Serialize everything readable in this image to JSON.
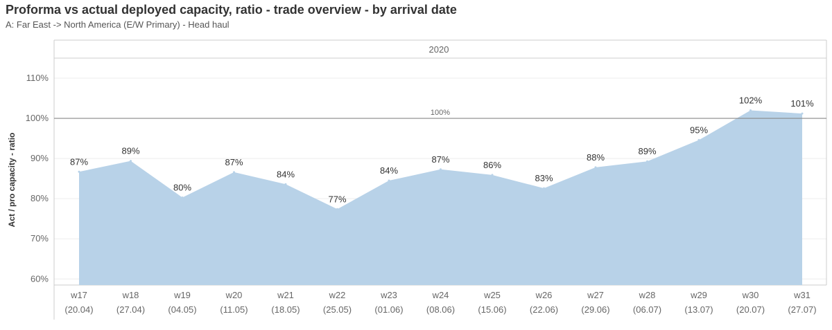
{
  "title": "Proforma vs actual deployed capacity, ratio - trade overview - by arrival date",
  "subtitle": "A: Far East -> North America (E/W Primary) - Head haul",
  "chart_data": {
    "type": "area",
    "panel_header": "2020",
    "ylabel": "Act / pro capacity - ratio",
    "ylim": [
      58.5,
      115
    ],
    "yticks": [
      60,
      70,
      80,
      90,
      100,
      110
    ],
    "ytick_labels": [
      "60%",
      "70%",
      "80%",
      "90%",
      "100%",
      "110%"
    ],
    "reference_line": {
      "value": 100,
      "label": "100%"
    },
    "categories": [
      {
        "week": "w17",
        "date": "(20.04)"
      },
      {
        "week": "w18",
        "date": "(27.04)"
      },
      {
        "week": "w19",
        "date": "(04.05)"
      },
      {
        "week": "w20",
        "date": "(11.05)"
      },
      {
        "week": "w21",
        "date": "(18.05)"
      },
      {
        "week": "w22",
        "date": "(25.05)"
      },
      {
        "week": "w23",
        "date": "(01.06)"
      },
      {
        "week": "w24",
        "date": "(08.06)"
      },
      {
        "week": "w25",
        "date": "(15.06)"
      },
      {
        "week": "w26",
        "date": "(22.06)"
      },
      {
        "week": "w27",
        "date": "(29.06)"
      },
      {
        "week": "w28",
        "date": "(06.07)"
      },
      {
        "week": "w29",
        "date": "(13.07)"
      },
      {
        "week": "w30",
        "date": "(20.07)"
      },
      {
        "week": "w31",
        "date": "(27.07)"
      }
    ],
    "values": [
      86.7,
      89.4,
      80.3,
      86.6,
      83.6,
      77.4,
      84.5,
      87.3,
      85.9,
      82.6,
      87.8,
      89.3,
      94.6,
      102.0,
      101.2
    ],
    "value_labels": [
      "87%",
      "89%",
      "80%",
      "87%",
      "84%",
      "77%",
      "84%",
      "87%",
      "86%",
      "83%",
      "88%",
      "89%",
      "95%",
      "102%",
      "101%"
    ],
    "grid": true,
    "colors": {
      "fill": "#b8d2e8",
      "reference": "#888888",
      "grid": "#eeeeee",
      "axis": "#cccccc"
    }
  }
}
